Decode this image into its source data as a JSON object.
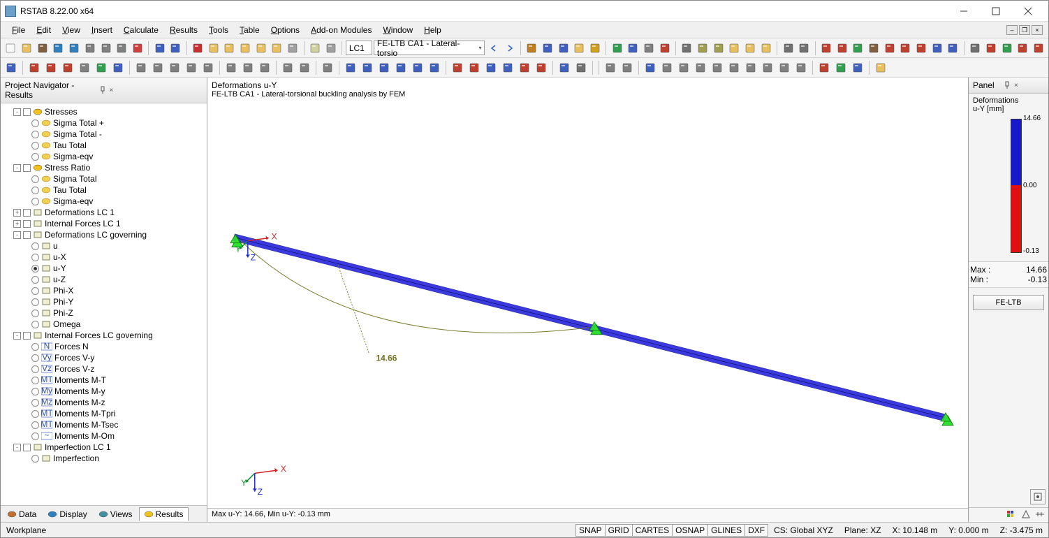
{
  "titlebar": {
    "title": "RSTAB 8.22.00 x64"
  },
  "menubar": {
    "items": [
      "File",
      "Edit",
      "View",
      "Insert",
      "Calculate",
      "Results",
      "Tools",
      "Table",
      "Options",
      "Add-on Modules",
      "Window",
      "Help"
    ]
  },
  "toolbar1": {
    "lc_small": "LC1",
    "combo": "FE-LTB CA1 - Lateral-torsio"
  },
  "navigator": {
    "title": "Project Navigator - Results",
    "groups": [
      {
        "exp": "-",
        "label": "Stresses",
        "icon": "#f0c020",
        "children": [
          {
            "label": "Sigma Total +"
          },
          {
            "label": "Sigma Total -"
          },
          {
            "label": "Tau Total"
          },
          {
            "label": "Sigma-eqv"
          }
        ]
      },
      {
        "exp": "-",
        "label": "Stress Ratio",
        "icon": "#f0c020",
        "children": [
          {
            "label": "Sigma Total"
          },
          {
            "label": "Tau Total"
          },
          {
            "label": "Sigma-eqv"
          }
        ]
      },
      {
        "exp": "+",
        "label": "Deformations LC 1",
        "icon": "#808080",
        "children": []
      },
      {
        "exp": "+",
        "label": "Internal Forces LC 1",
        "icon": "#4060c0",
        "children": []
      },
      {
        "exp": "-",
        "label": "Deformations LC governing",
        "icon": "#808080",
        "children": [
          {
            "label": "u"
          },
          {
            "label": "u-X"
          },
          {
            "label": "u-Y",
            "selected": true
          },
          {
            "label": "u-Z"
          },
          {
            "label": "Phi-X"
          },
          {
            "label": "Phi-Y"
          },
          {
            "label": "Phi-Z"
          },
          {
            "label": "Omega"
          }
        ]
      },
      {
        "exp": "-",
        "label": "Internal Forces LC governing",
        "icon": "#4060c0",
        "children": [
          {
            "label": "Forces N",
            "sub": "N"
          },
          {
            "label": "Forces V-y",
            "sub": "Vy"
          },
          {
            "label": "Forces V-z",
            "sub": "Vz"
          },
          {
            "label": "Moments M-T",
            "sub": "MT"
          },
          {
            "label": "Moments M-y",
            "sub": "My"
          },
          {
            "label": "Moments M-z",
            "sub": "Mz"
          },
          {
            "label": "Moments M-Tpri",
            "sub": "MT"
          },
          {
            "label": "Moments M-Tsec",
            "sub": "MT"
          },
          {
            "label": "Moments M-Om",
            "sub": "~"
          }
        ]
      },
      {
        "exp": "-",
        "label": "Imperfection LC 1",
        "icon": "#808080",
        "children": [
          {
            "label": "Imperfection"
          }
        ]
      }
    ],
    "tabs": [
      {
        "label": "Data",
        "icon": "#c07030"
      },
      {
        "label": "Display",
        "icon": "#3080c0"
      },
      {
        "label": "Views",
        "icon": "#4090a0"
      },
      {
        "label": "Results",
        "icon": "#f0c020",
        "active": true
      }
    ]
  },
  "viewport": {
    "title": "Deformations u-Y",
    "subtitle": "FE-LTB CA1 - Lateral-torsional buckling analysis by FEM",
    "value_label": "14.66",
    "axes": {
      "x": "X",
      "y": "Y",
      "z": "Z"
    },
    "status": "Max u-Y: 14.66, Min u-Y: -0.13 mm",
    "beam_color": "#3a3ae0",
    "support_color": "#30e030",
    "curve_color": "#7a7a30"
  },
  "rightpanel": {
    "title": "Panel",
    "legend_title": "Deformations",
    "legend_sub": "u-Y [mm]",
    "max_val": "14.66",
    "mid_val": "0.00",
    "min_val": "-0.13",
    "blue_pct": 0.5,
    "red_pct": 0.5,
    "stats_max_label": "Max  :",
    "stats_max": "14.66",
    "stats_min_label": "Min   :",
    "stats_min": "-0.13",
    "button": "FE-LTB"
  },
  "statusbar": {
    "workplane": "Workplane",
    "toggles": [
      "SNAP",
      "GRID",
      "CARTES",
      "OSNAP",
      "GLINES",
      "DXF"
    ],
    "cs": "CS: Global XYZ",
    "plane": "Plane: XZ",
    "x": "X: 10.148 m",
    "y": "Y:  0.000 m",
    "z": "Z:  -3.475 m"
  },
  "tb1_icons": [
    "#f8f8f8",
    "#e8c060",
    "#806040",
    "#3080c0",
    "#3080c0",
    "#808080",
    "#808080",
    "#808080",
    "#d04040",
    "sep",
    "#4060c0",
    "#4060c0",
    "sep",
    "#c83030",
    "#e8c060",
    "#e8c060",
    "#e8c060",
    "#e8c060",
    "#e8c060",
    "#a0a0a0",
    "sep",
    "#d0d0a0",
    "#a0a0a0",
    "sep",
    "combo_lc",
    "combo",
    "nav_l",
    "nav_r",
    "sep",
    "#c08020",
    "#4060c0",
    "#4060c0",
    "#e8c060",
    "#d0a020",
    "sep",
    "#30a050",
    "#4060c0",
    "#808080",
    "#c04030",
    "sep",
    "#707070",
    "#a0a050",
    "#a0a050",
    "#e8c060",
    "#e8c060",
    "#e8c060",
    "sep",
    "#707070",
    "#707070",
    "sep",
    "#c04030",
    "#c04030",
    "#30a050",
    "#806040",
    "#c04030",
    "#c04030",
    "#c04030",
    "#4060c0",
    "#4060c0",
    "sep",
    "#707070",
    "#c04030",
    "#30a050",
    "#c04030",
    "#c04030"
  ],
  "tb2_icons": [
    "#4060c0",
    "sep",
    "#c04030",
    "#c04030",
    "#c04030",
    "#808080",
    "#30a050",
    "#4060c0",
    "sep",
    "#808080",
    "#808080",
    "#808080",
    "#808080",
    "#808080",
    "sep",
    "#808080",
    "#808080",
    "#808080",
    "sep",
    "#808080",
    "#808080",
    "sep",
    "#808080",
    "sep",
    "#4060c0",
    "#4060c0",
    "#4060c0",
    "#4060c0",
    "#4060c0",
    "#4060c0",
    "sep",
    "#c04030",
    "#c04030",
    "#4060c0",
    "#4060c0",
    "#c04030",
    "#c04030",
    "sep",
    "#4060c0",
    "#707070",
    "sep",
    "sep",
    "#808080",
    "#808080",
    "sep",
    "#4060c0",
    "#808080",
    "#808080",
    "#808080",
    "#808080",
    "#808080",
    "#808080",
    "#808080",
    "#808080",
    "#808080",
    "sep",
    "#c04030",
    "#30a050",
    "#4060c0",
    "sep",
    "#e8c060"
  ]
}
